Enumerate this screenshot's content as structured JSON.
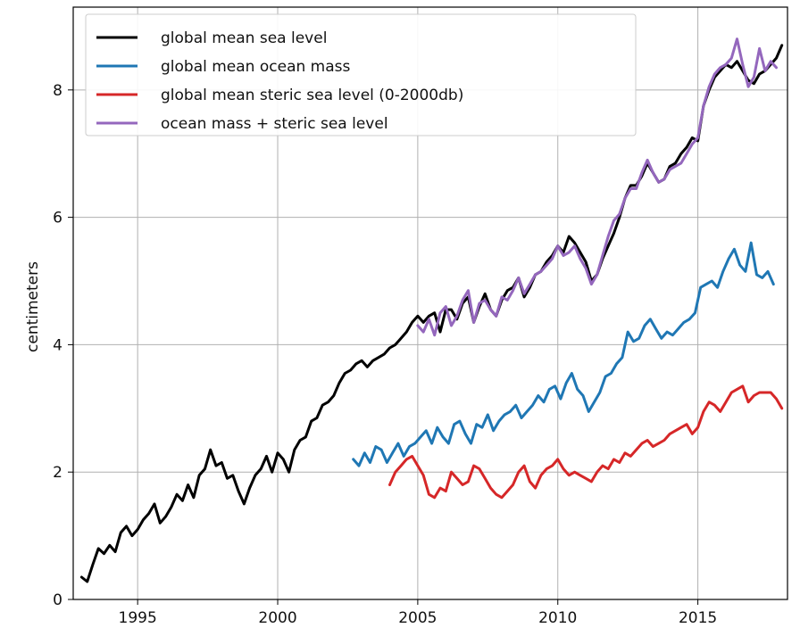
{
  "chart_data": {
    "type": "line",
    "title": "",
    "xlabel": "",
    "ylabel": "centimeters",
    "xlim": [
      1992.7,
      2018.2
    ],
    "ylim": [
      0,
      9.3
    ],
    "x_ticks": [
      1995,
      2000,
      2005,
      2010,
      2015
    ],
    "y_ticks": [
      0,
      2,
      4,
      6,
      8
    ],
    "grid": true,
    "legend_position": "top-left",
    "series": [
      {
        "name": "global mean sea level",
        "color": "#000000",
        "x": [
          1993.0,
          1993.2,
          1993.4,
          1993.6,
          1993.8,
          1994.0,
          1994.2,
          1994.4,
          1994.6,
          1994.8,
          1995.0,
          1995.2,
          1995.4,
          1995.6,
          1995.8,
          1996.0,
          1996.2,
          1996.4,
          1996.6,
          1996.8,
          1997.0,
          1997.2,
          1997.4,
          1997.6,
          1997.8,
          1998.0,
          1998.2,
          1998.4,
          1998.6,
          1998.8,
          1999.0,
          1999.2,
          1999.4,
          1999.6,
          1999.8,
          2000.0,
          2000.2,
          2000.4,
          2000.6,
          2000.8,
          2001.0,
          2001.2,
          2001.4,
          2001.6,
          2001.8,
          2002.0,
          2002.2,
          2002.4,
          2002.6,
          2002.8,
          2003.0,
          2003.2,
          2003.4,
          2003.6,
          2003.8,
          2004.0,
          2004.2,
          2004.4,
          2004.6,
          2004.8,
          2005.0,
          2005.2,
          2005.4,
          2005.6,
          2005.8,
          2006.0,
          2006.2,
          2006.4,
          2006.6,
          2006.8,
          2007.0,
          2007.2,
          2007.4,
          2007.6,
          2007.8,
          2008.0,
          2008.2,
          2008.4,
          2008.6,
          2008.8,
          2009.0,
          2009.2,
          2009.4,
          2009.6,
          2009.8,
          2010.0,
          2010.2,
          2010.4,
          2010.6,
          2010.8,
          2011.0,
          2011.2,
          2011.4,
          2011.6,
          2011.8,
          2012.0,
          2012.2,
          2012.4,
          2012.6,
          2012.8,
          2013.0,
          2013.2,
          2013.4,
          2013.6,
          2013.8,
          2014.0,
          2014.2,
          2014.4,
          2014.6,
          2014.8,
          2015.0,
          2015.2,
          2015.4,
          2015.6,
          2015.8,
          2016.0,
          2016.2,
          2016.4,
          2016.6,
          2016.8,
          2017.0,
          2017.2,
          2017.4,
          2017.6,
          2017.8,
          2018.0
        ],
        "y": [
          0.35,
          0.28,
          0.55,
          0.8,
          0.72,
          0.85,
          0.75,
          1.05,
          1.15,
          1.0,
          1.1,
          1.25,
          1.35,
          1.5,
          1.2,
          1.3,
          1.45,
          1.65,
          1.55,
          1.8,
          1.6,
          1.95,
          2.05,
          2.35,
          2.1,
          2.15,
          1.9,
          1.95,
          1.7,
          1.5,
          1.75,
          1.95,
          2.05,
          2.25,
          2.0,
          2.3,
          2.2,
          2.0,
          2.35,
          2.5,
          2.55,
          2.8,
          2.85,
          3.05,
          3.1,
          3.2,
          3.4,
          3.55,
          3.6,
          3.7,
          3.75,
          3.65,
          3.75,
          3.8,
          3.85,
          3.95,
          4.0,
          4.1,
          4.2,
          4.35,
          4.45,
          4.35,
          4.45,
          4.5,
          4.2,
          4.55,
          4.55,
          4.4,
          4.65,
          4.75,
          4.35,
          4.6,
          4.8,
          4.55,
          4.45,
          4.7,
          4.85,
          4.9,
          5.05,
          4.75,
          4.9,
          5.1,
          5.15,
          5.3,
          5.4,
          5.55,
          5.45,
          5.7,
          5.6,
          5.45,
          5.3,
          5.0,
          5.1,
          5.35,
          5.55,
          5.75,
          6.0,
          6.3,
          6.5,
          6.5,
          6.65,
          6.85,
          6.7,
          6.55,
          6.6,
          6.8,
          6.85,
          7.0,
          7.1,
          7.25,
          7.2,
          7.75,
          8.0,
          8.2,
          8.3,
          8.4,
          8.35,
          8.45,
          8.3,
          8.15,
          8.1,
          8.25,
          8.3,
          8.4,
          8.5,
          8.7
        ]
      },
      {
        "name": "global mean ocean mass",
        "color": "#1f77b4",
        "x": [
          2002.7,
          2002.9,
          2003.1,
          2003.3,
          2003.5,
          2003.7,
          2003.9,
          2004.1,
          2004.3,
          2004.5,
          2004.7,
          2004.9,
          2005.1,
          2005.3,
          2005.5,
          2005.7,
          2005.9,
          2006.1,
          2006.3,
          2006.5,
          2006.7,
          2006.9,
          2007.1,
          2007.3,
          2007.5,
          2007.7,
          2007.9,
          2008.1,
          2008.3,
          2008.5,
          2008.7,
          2008.9,
          2009.1,
          2009.3,
          2009.5,
          2009.7,
          2009.9,
          2010.1,
          2010.3,
          2010.5,
          2010.7,
          2010.9,
          2011.1,
          2011.3,
          2011.5,
          2011.7,
          2011.9,
          2012.1,
          2012.3,
          2012.5,
          2012.7,
          2012.9,
          2013.1,
          2013.3,
          2013.5,
          2013.7,
          2013.9,
          2014.1,
          2014.3,
          2014.5,
          2014.7,
          2014.9,
          2015.1,
          2015.3,
          2015.5,
          2015.7,
          2015.9,
          2016.1,
          2016.3,
          2016.5,
          2016.7,
          2016.9,
          2017.1,
          2017.3,
          2017.5,
          2017.7
        ],
        "y": [
          2.2,
          2.1,
          2.3,
          2.15,
          2.4,
          2.35,
          2.15,
          2.3,
          2.45,
          2.25,
          2.4,
          2.45,
          2.55,
          2.65,
          2.45,
          2.7,
          2.55,
          2.45,
          2.75,
          2.8,
          2.6,
          2.45,
          2.75,
          2.7,
          2.9,
          2.65,
          2.8,
          2.9,
          2.95,
          3.05,
          2.85,
          2.95,
          3.05,
          3.2,
          3.1,
          3.3,
          3.35,
          3.15,
          3.4,
          3.55,
          3.3,
          3.2,
          2.95,
          3.1,
          3.25,
          3.5,
          3.55,
          3.7,
          3.8,
          4.2,
          4.05,
          4.1,
          4.3,
          4.4,
          4.25,
          4.1,
          4.2,
          4.15,
          4.25,
          4.35,
          4.4,
          4.5,
          4.9,
          4.95,
          5.0,
          4.9,
          5.15,
          5.35,
          5.5,
          5.25,
          5.15,
          5.6,
          5.1,
          5.05,
          5.15,
          4.95
        ]
      },
      {
        "name": "global mean steric sea level (0-2000db)",
        "color": "#d62728",
        "x": [
          2004.0,
          2004.2,
          2004.4,
          2004.6,
          2004.8,
          2005.0,
          2005.2,
          2005.4,
          2005.6,
          2005.8,
          2006.0,
          2006.2,
          2006.4,
          2006.6,
          2006.8,
          2007.0,
          2007.2,
          2007.4,
          2007.6,
          2007.8,
          2008.0,
          2008.2,
          2008.4,
          2008.6,
          2008.8,
          2009.0,
          2009.2,
          2009.4,
          2009.6,
          2009.8,
          2010.0,
          2010.2,
          2010.4,
          2010.6,
          2010.8,
          2011.0,
          2011.2,
          2011.4,
          2011.6,
          2011.8,
          2012.0,
          2012.2,
          2012.4,
          2012.6,
          2012.8,
          2013.0,
          2013.2,
          2013.4,
          2013.6,
          2013.8,
          2014.0,
          2014.2,
          2014.4,
          2014.6,
          2014.8,
          2015.0,
          2015.2,
          2015.4,
          2015.6,
          2015.8,
          2016.0,
          2016.2,
          2016.4,
          2016.6,
          2016.8,
          2017.0,
          2017.2,
          2017.4,
          2017.6,
          2017.8,
          2018.0
        ],
        "y": [
          1.8,
          2.0,
          2.1,
          2.2,
          2.25,
          2.1,
          1.95,
          1.65,
          1.6,
          1.75,
          1.7,
          2.0,
          1.9,
          1.8,
          1.85,
          2.1,
          2.05,
          1.9,
          1.75,
          1.65,
          1.6,
          1.7,
          1.8,
          2.0,
          2.1,
          1.85,
          1.75,
          1.95,
          2.05,
          2.1,
          2.2,
          2.05,
          1.95,
          2.0,
          1.95,
          1.9,
          1.85,
          2.0,
          2.1,
          2.05,
          2.2,
          2.15,
          2.3,
          2.25,
          2.35,
          2.45,
          2.5,
          2.4,
          2.45,
          2.5,
          2.6,
          2.65,
          2.7,
          2.75,
          2.6,
          2.7,
          2.95,
          3.1,
          3.05,
          2.95,
          3.1,
          3.25,
          3.3,
          3.35,
          3.1,
          3.2,
          3.25,
          3.25,
          3.25,
          3.15,
          3.0
        ]
      },
      {
        "name": "ocean mass + steric sea level",
        "color": "#9467bd",
        "x": [
          2005.0,
          2005.2,
          2005.4,
          2005.6,
          2005.8,
          2006.0,
          2006.2,
          2006.4,
          2006.6,
          2006.8,
          2007.0,
          2007.2,
          2007.4,
          2007.6,
          2007.8,
          2008.0,
          2008.2,
          2008.4,
          2008.6,
          2008.8,
          2009.0,
          2009.2,
          2009.4,
          2009.6,
          2009.8,
          2010.0,
          2010.2,
          2010.4,
          2010.6,
          2010.8,
          2011.0,
          2011.2,
          2011.4,
          2011.6,
          2011.8,
          2012.0,
          2012.2,
          2012.4,
          2012.6,
          2012.8,
          2013.0,
          2013.2,
          2013.4,
          2013.6,
          2013.8,
          2014.0,
          2014.2,
          2014.4,
          2014.6,
          2014.8,
          2015.0,
          2015.2,
          2015.4,
          2015.6,
          2015.8,
          2016.0,
          2016.2,
          2016.4,
          2016.6,
          2016.8,
          2017.0,
          2017.2,
          2017.4,
          2017.6,
          2017.8
        ],
        "y": [
          4.3,
          4.2,
          4.4,
          4.15,
          4.5,
          4.6,
          4.3,
          4.45,
          4.7,
          4.85,
          4.35,
          4.65,
          4.7,
          4.55,
          4.45,
          4.75,
          4.7,
          4.85,
          5.05,
          4.8,
          4.95,
          5.1,
          5.15,
          5.25,
          5.35,
          5.55,
          5.4,
          5.45,
          5.55,
          5.35,
          5.2,
          4.95,
          5.1,
          5.4,
          5.7,
          5.95,
          6.05,
          6.3,
          6.45,
          6.45,
          6.7,
          6.9,
          6.7,
          6.55,
          6.6,
          6.75,
          6.8,
          6.85,
          7.0,
          7.15,
          7.25,
          7.75,
          8.05,
          8.25,
          8.35,
          8.4,
          8.5,
          8.8,
          8.4,
          8.05,
          8.2,
          8.65,
          8.3,
          8.45,
          8.35
        ]
      }
    ]
  }
}
